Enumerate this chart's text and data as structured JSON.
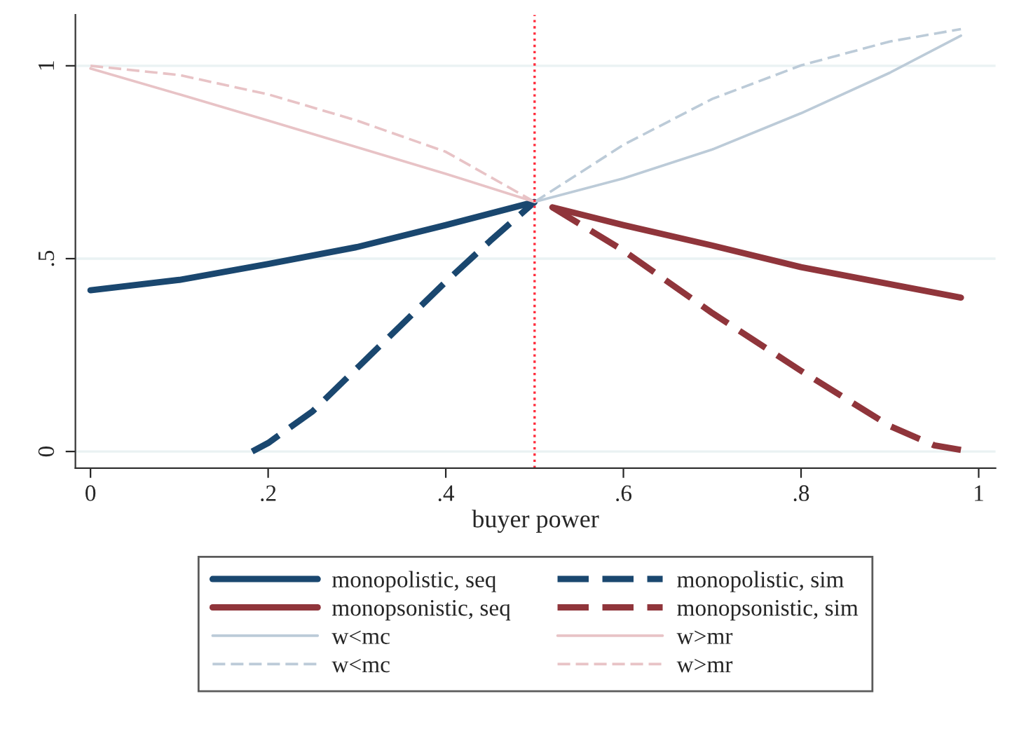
{
  "chart_data": {
    "type": "line",
    "xlabel": "buyer power",
    "xlim": [
      -0.017,
      1.019
    ],
    "ylim": [
      -0.043,
      1.132
    ],
    "xticks": [
      {
        "value": 0,
        "label": "0"
      },
      {
        "value": 0.2,
        "label": ".2"
      },
      {
        "value": 0.4,
        "label": ".4"
      },
      {
        "value": 0.6,
        "label": ".6"
      },
      {
        "value": 0.8,
        "label": ".8"
      },
      {
        "value": 1,
        "label": "1"
      }
    ],
    "yticks": [
      {
        "value": 0,
        "label": "0"
      },
      {
        "value": 0.5,
        "label": ".5"
      },
      {
        "value": 1,
        "label": "1"
      }
    ],
    "grid": "y",
    "legend": "bottom",
    "ref_lines": [
      {
        "axis": "x",
        "value": 0.5,
        "color": "#ff2a3a",
        "line_style": "dotted"
      }
    ],
    "series": [
      {
        "name": "monopolistic, seq",
        "color": "#1a476f",
        "line_style": "solid",
        "x": [
          0,
          0.1,
          0.2,
          0.3,
          0.4,
          0.5
        ],
        "values": [
          0.418,
          0.445,
          0.486,
          0.53,
          0.587,
          0.647
        ]
      },
      {
        "name": "monopsonistic, seq",
        "color": "#90353b",
        "line_style": "solid",
        "x": [
          0.52,
          0.6,
          0.7,
          0.8,
          0.9,
          0.98
        ],
        "values": [
          0.633,
          0.587,
          0.534,
          0.478,
          0.434,
          0.399
        ]
      },
      {
        "name": "w<mc",
        "color": "#bccbd8",
        "line_style": "solid",
        "x": [
          0.5,
          0.6,
          0.7,
          0.8,
          0.9,
          0.98
        ],
        "values": [
          0.647,
          0.708,
          0.783,
          0.877,
          0.982,
          1.078
        ]
      },
      {
        "name": "w<mc",
        "color": "#bccbd8",
        "line_style": "dashed",
        "x": [
          0.5,
          0.6,
          0.7,
          0.8,
          0.9,
          0.98
        ],
        "values": [
          0.647,
          0.795,
          0.914,
          1.001,
          1.063,
          1.095
        ]
      },
      {
        "name": "monopolistic, sim",
        "color": "#1a476f",
        "line_style": "dashed",
        "x": [
          0.182,
          0.2,
          0.25,
          0.3,
          0.35,
          0.4,
          0.45,
          0.5
        ],
        "values": [
          0,
          0.022,
          0.104,
          0.216,
          0.328,
          0.44,
          0.546,
          0.647
        ]
      },
      {
        "name": "monopsonistic, sim",
        "color": "#90353b",
        "line_style": "dashed",
        "x": [
          0.52,
          0.6,
          0.7,
          0.8,
          0.9,
          0.95,
          0.98
        ],
        "values": [
          0.633,
          0.521,
          0.359,
          0.209,
          0.066,
          0.016,
          0.004
        ]
      },
      {
        "name": "w>mr",
        "color": "#e8c3c6",
        "line_style": "solid",
        "x": [
          0,
          0.1,
          0.2,
          0.3,
          0.4,
          0.5
        ],
        "values": [
          0.993,
          0.926,
          0.858,
          0.789,
          0.72,
          0.647
        ]
      },
      {
        "name": "w>mr",
        "color": "#e8c3c6",
        "line_style": "dashed",
        "x": [
          0,
          0.1,
          0.2,
          0.3,
          0.4,
          0.5
        ],
        "values": [
          1.0,
          0.976,
          0.926,
          0.858,
          0.777,
          0.647
        ]
      }
    ]
  }
}
